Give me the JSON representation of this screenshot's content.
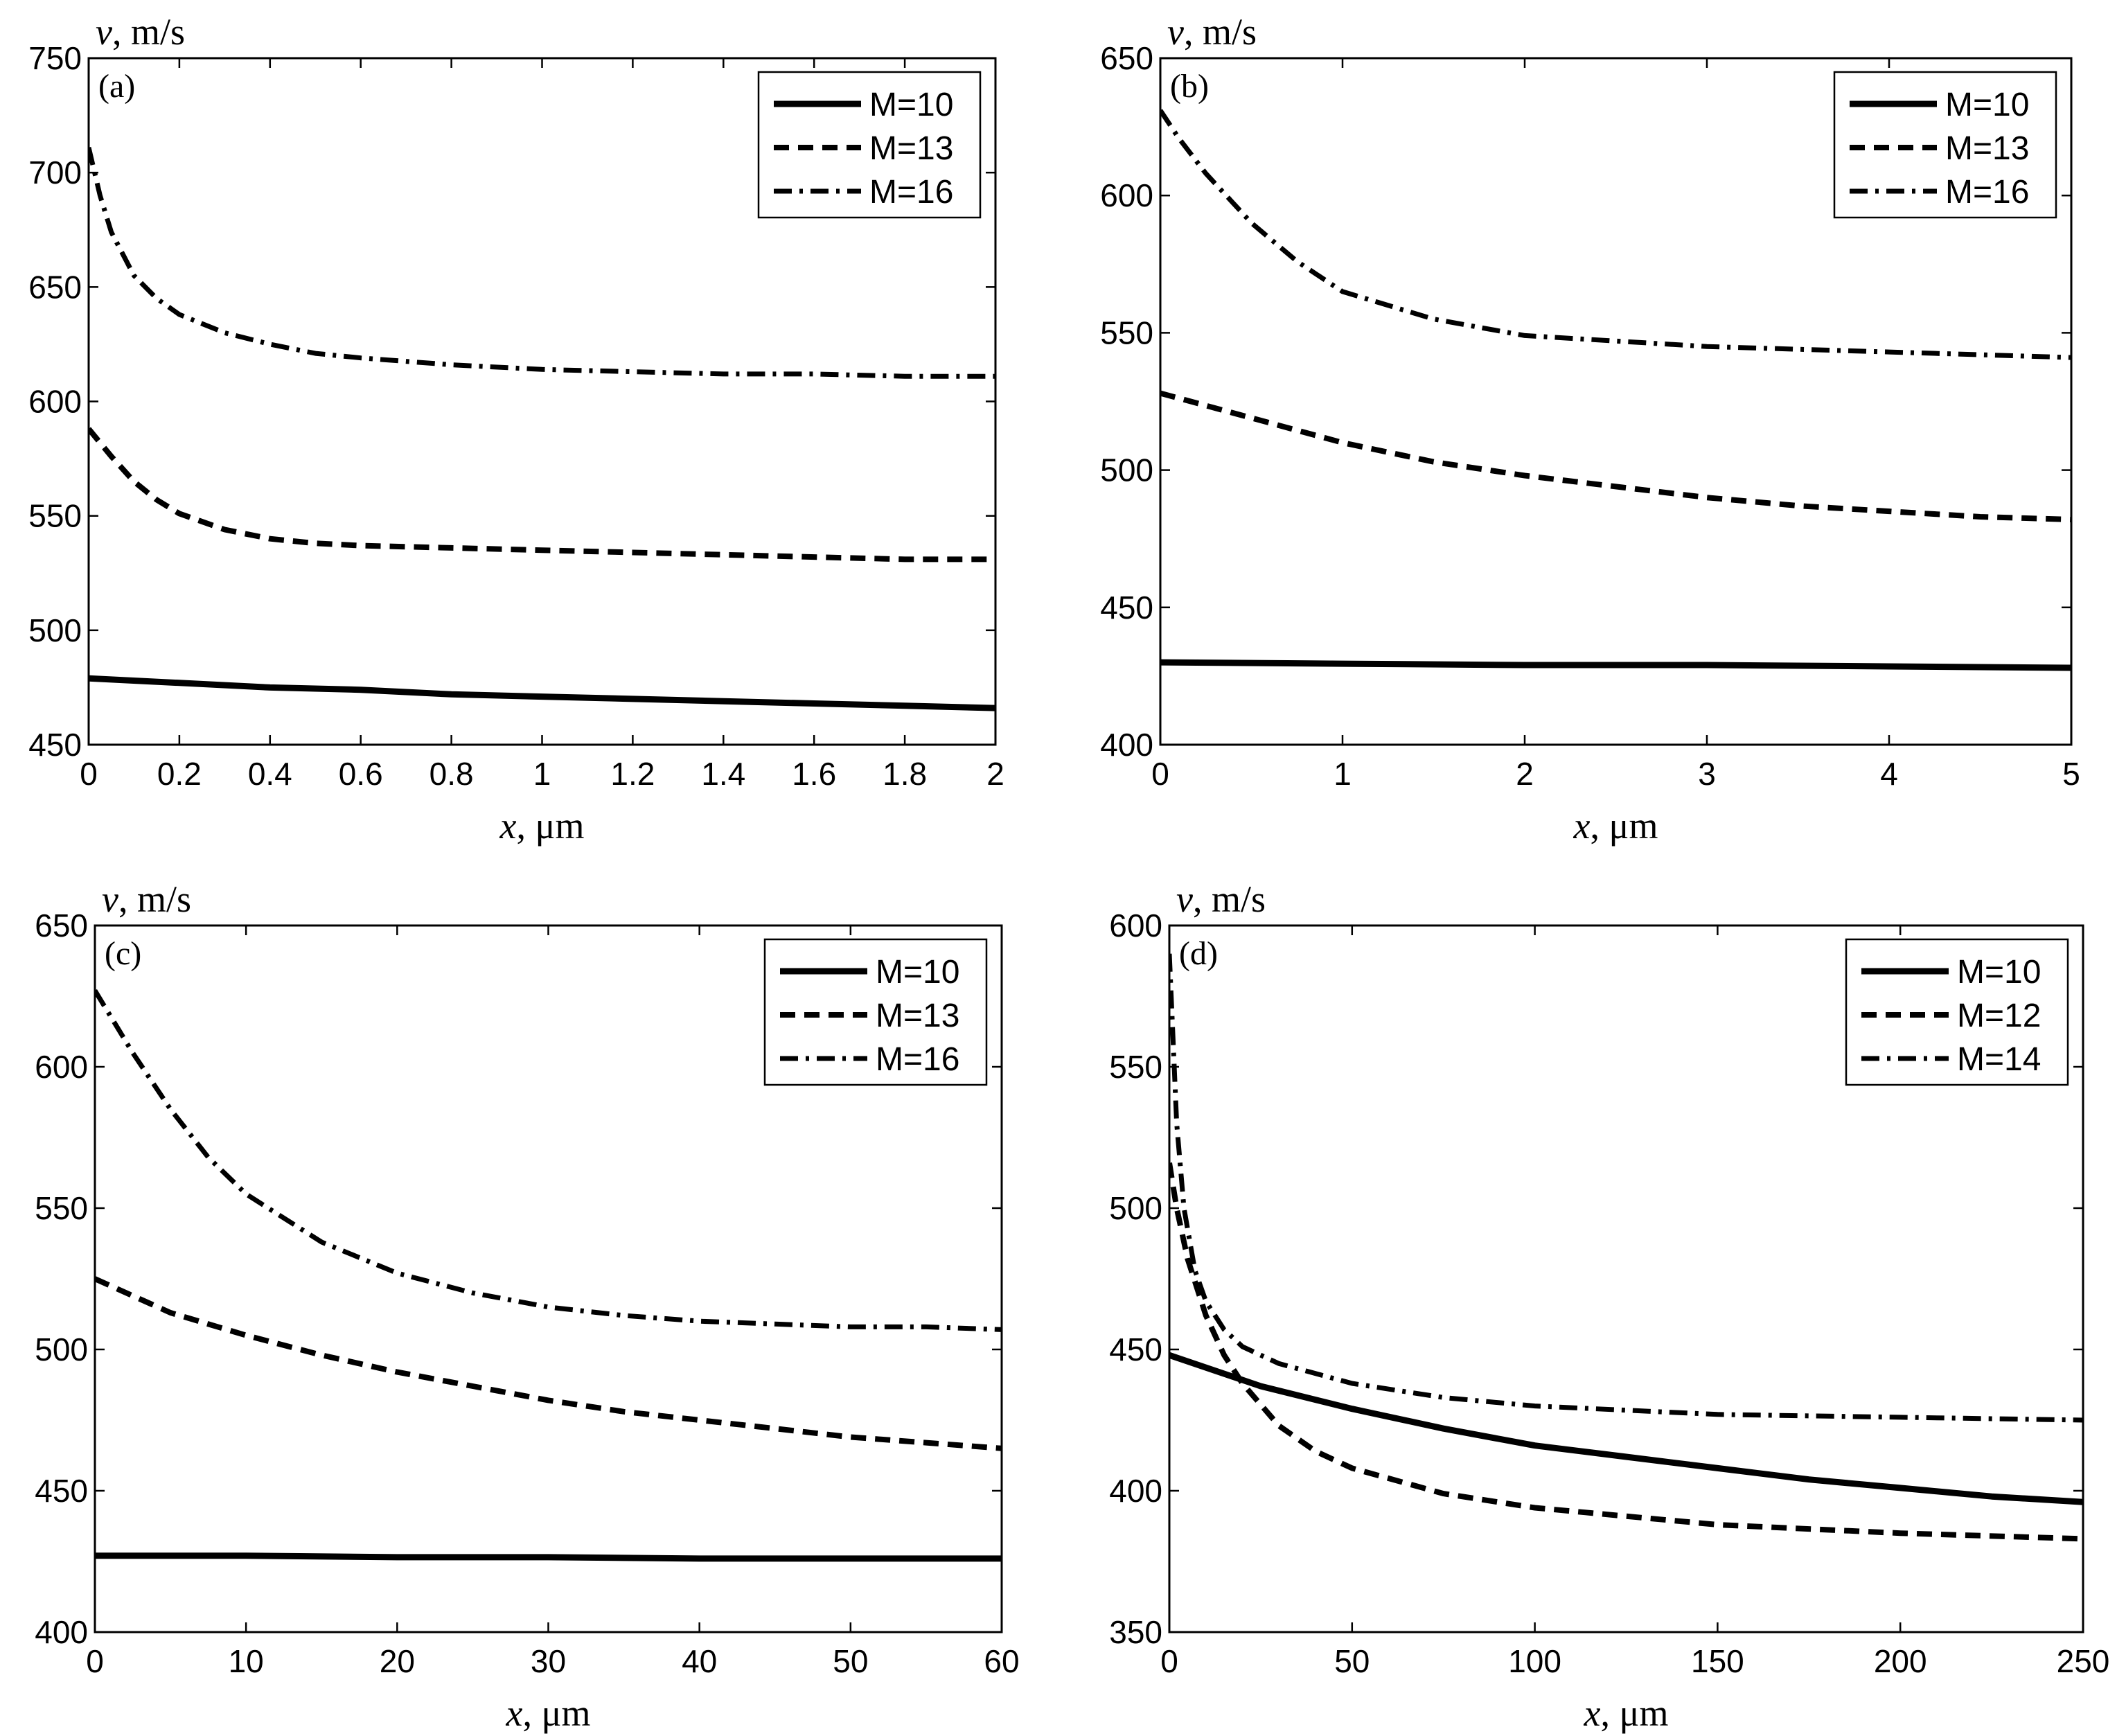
{
  "chart_data": [
    {
      "type": "line",
      "panel_label": "(a)",
      "xlabel_var": "x",
      "xlabel_unit": ", μm",
      "ylabel_var": "v",
      "ylabel_unit": ", m/s",
      "xlim": [
        0,
        2
      ],
      "ylim": [
        450,
        750
      ],
      "xticks": [
        0,
        0.2,
        0.4,
        0.6,
        0.8,
        1,
        1.2,
        1.4,
        1.6,
        1.8,
        2
      ],
      "xtick_labels": [
        "0",
        "0.2",
        "0.4",
        "0.6",
        "0.8",
        "1",
        "1.2",
        "1.4",
        "1.6",
        "1.8",
        "2"
      ],
      "yticks": [
        450,
        500,
        550,
        600,
        650,
        700,
        750
      ],
      "ytick_labels": [
        "450",
        "500",
        "550",
        "600",
        "650",
        "700",
        "750"
      ],
      "legend_position": "top-right",
      "series": [
        {
          "name": "M=10",
          "style": "solid",
          "x": [
            0,
            0.2,
            0.4,
            0.6,
            0.8,
            1.0,
            1.2,
            1.4,
            1.6,
            1.8,
            2.0
          ],
          "y": [
            479,
            477,
            475,
            474,
            472,
            471,
            470,
            469,
            468,
            467,
            466
          ]
        },
        {
          "name": "M=13",
          "style": "dashed",
          "x": [
            0,
            0.05,
            0.1,
            0.15,
            0.2,
            0.3,
            0.4,
            0.5,
            0.6,
            0.8,
            1.0,
            1.2,
            1.4,
            1.6,
            1.8,
            2.0
          ],
          "y": [
            588,
            576,
            565,
            557,
            551,
            544,
            540,
            538,
            537,
            536,
            535,
            534,
            533,
            532,
            531,
            531
          ]
        },
        {
          "name": "M=16",
          "style": "dashdot",
          "x": [
            0,
            0.025,
            0.05,
            0.1,
            0.15,
            0.2,
            0.3,
            0.4,
            0.5,
            0.6,
            0.8,
            1.0,
            1.2,
            1.4,
            1.6,
            1.8,
            2.0
          ],
          "y": [
            711,
            690,
            674,
            655,
            645,
            638,
            630,
            625,
            621,
            619,
            616,
            614,
            613,
            612,
            612,
            611,
            611
          ]
        }
      ]
    },
    {
      "type": "line",
      "panel_label": "(b)",
      "xlabel_var": "x",
      "xlabel_unit": ", μm",
      "ylabel_var": "v",
      "ylabel_unit": ", m/s",
      "xlim": [
        0,
        5
      ],
      "ylim": [
        400,
        650
      ],
      "xticks": [
        0,
        1,
        2,
        3,
        4,
        5
      ],
      "xtick_labels": [
        "0",
        "1",
        "2",
        "3",
        "4",
        "5"
      ],
      "yticks": [
        400,
        450,
        500,
        550,
        600,
        650
      ],
      "ytick_labels": [
        "400",
        "450",
        "500",
        "550",
        "600",
        "650"
      ],
      "legend_position": "top-right",
      "series": [
        {
          "name": "M=10",
          "style": "solid",
          "x": [
            0,
            1,
            2,
            3,
            4,
            5
          ],
          "y": [
            430,
            429.5,
            429,
            429,
            428.5,
            428
          ]
        },
        {
          "name": "M=13",
          "style": "dashed",
          "x": [
            0,
            0.5,
            1,
            1.5,
            2,
            2.5,
            3,
            3.5,
            4,
            4.5,
            5
          ],
          "y": [
            528,
            519,
            510,
            503,
            498,
            494,
            490,
            487,
            485,
            483,
            482
          ]
        },
        {
          "name": "M=16",
          "style": "dashdot",
          "x": [
            0,
            0.1,
            0.25,
            0.5,
            0.75,
            1,
            1.5,
            2,
            2.5,
            3,
            3.5,
            4,
            4.5,
            5
          ],
          "y": [
            631,
            621,
            608,
            590,
            576,
            565,
            555,
            549,
            547,
            545,
            544,
            543,
            542,
            541
          ]
        }
      ]
    },
    {
      "type": "line",
      "panel_label": "(c)",
      "xlabel_var": "x",
      "xlabel_unit": ", μm",
      "ylabel_var": "v",
      "ylabel_unit": ", m/s",
      "xlim": [
        0,
        60
      ],
      "ylim": [
        400,
        650
      ],
      "xticks": [
        0,
        10,
        20,
        30,
        40,
        50,
        60
      ],
      "xtick_labels": [
        "0",
        "10",
        "20",
        "30",
        "40",
        "50",
        "60"
      ],
      "yticks": [
        400,
        450,
        500,
        550,
        600,
        650
      ],
      "ytick_labels": [
        "400",
        "450",
        "500",
        "550",
        "600",
        "650"
      ],
      "legend_position": "top-right",
      "series": [
        {
          "name": "M=10",
          "style": "solid",
          "x": [
            0,
            10,
            20,
            30,
            40,
            50,
            60
          ],
          "y": [
            427,
            427,
            426.5,
            426.5,
            426,
            426,
            426
          ]
        },
        {
          "name": "M=13",
          "style": "dashed",
          "x": [
            0,
            5,
            10,
            15,
            20,
            25,
            30,
            35,
            40,
            45,
            50,
            55,
            60
          ],
          "y": [
            525,
            513,
            505,
            498,
            492,
            487,
            482,
            478,
            475,
            472,
            469,
            467,
            465
          ]
        },
        {
          "name": "M=16",
          "style": "dashdot",
          "x": [
            0,
            2.5,
            5,
            7.5,
            10,
            15,
            20,
            25,
            30,
            35,
            40,
            45,
            50,
            55,
            60
          ],
          "y": [
            627,
            605,
            585,
            568,
            555,
            538,
            527,
            520,
            515,
            512,
            510,
            509,
            508,
            508,
            507
          ]
        }
      ]
    },
    {
      "type": "line",
      "panel_label": "(d)",
      "xlabel_var": "x",
      "xlabel_unit": ", μm",
      "ylabel_var": "v",
      "ylabel_unit": ", m/s",
      "xlim": [
        0,
        250
      ],
      "ylim": [
        350,
        600
      ],
      "xticks": [
        0,
        50,
        100,
        150,
        200,
        250
      ],
      "xtick_labels": [
        "0",
        "50",
        "100",
        "150",
        "200",
        "250"
      ],
      "yticks": [
        350,
        400,
        450,
        500,
        550,
        600
      ],
      "ytick_labels": [
        "350",
        "400",
        "450",
        "500",
        "550",
        "600"
      ],
      "legend_position": "top-right",
      "series": [
        {
          "name": "M=10",
          "style": "solid",
          "x": [
            0,
            25,
            50,
            75,
            100,
            125,
            150,
            175,
            200,
            225,
            250
          ],
          "y": [
            448,
            437,
            429,
            422,
            416,
            412,
            408,
            404,
            401,
            398,
            396
          ]
        },
        {
          "name": "M=12",
          "style": "dashed",
          "x": [
            0,
            2,
            5,
            10,
            15,
            20,
            30,
            40,
            50,
            75,
            100,
            150,
            200,
            250
          ],
          "y": [
            516,
            500,
            482,
            462,
            448,
            438,
            423,
            414,
            408,
            399,
            394,
            388,
            385,
            383
          ]
        },
        {
          "name": "M=14",
          "style": "dashdot",
          "x": [
            0,
            1,
            2,
            4,
            7,
            10,
            15,
            20,
            30,
            50,
            75,
            100,
            150,
            200,
            250
          ],
          "y": [
            590,
            560,
            530,
            500,
            478,
            467,
            457,
            451,
            445,
            438,
            433,
            430,
            427,
            426,
            425
          ]
        }
      ]
    }
  ]
}
